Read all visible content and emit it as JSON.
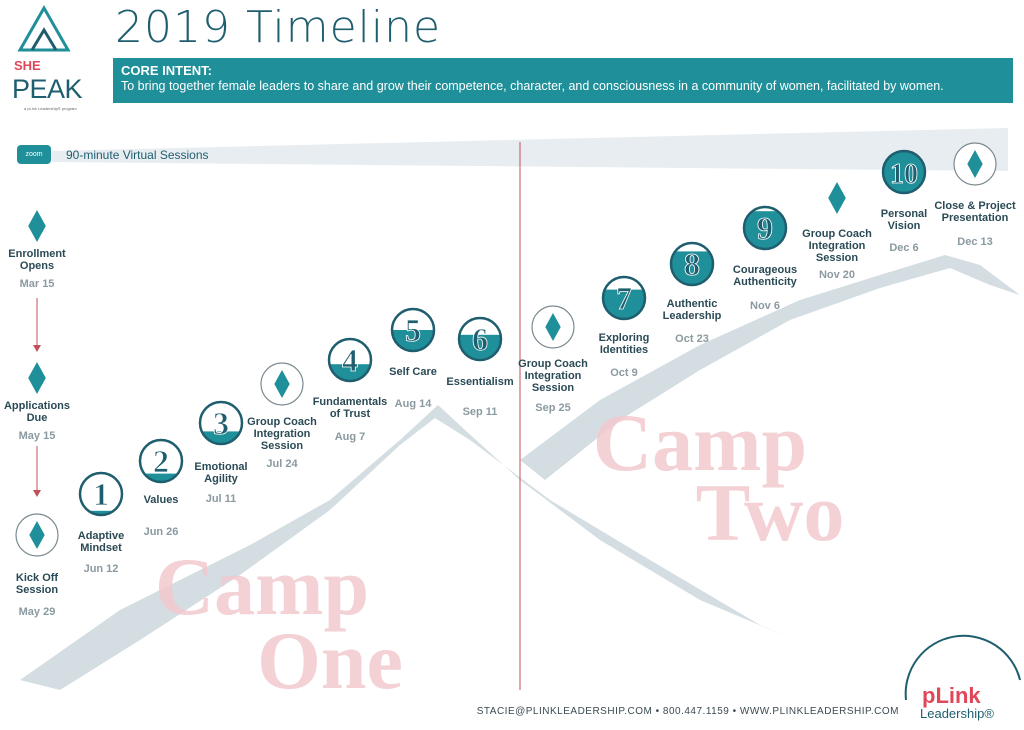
{
  "title": "2019 Timeline",
  "logo": {
    "she": "SHE",
    "peak": "PEAK",
    "tagline": "a pLink Leadership® program"
  },
  "banner": {
    "heading": "CORE INTENT:",
    "text": "To bring together female leaders to share and grow their competence, character, and consciousness in a community of women, facilitated by women."
  },
  "zoom": {
    "badge": "zoom",
    "label": "90-minute Virtual Sessions"
  },
  "camps": [
    "Camp One",
    "Camp Two"
  ],
  "milestones": [
    {
      "label": "Enrollment\nOpens",
      "date": "Mar 15",
      "kind": "diamond"
    },
    {
      "label": "Applications\nDue",
      "date": "May 15",
      "kind": "diamond"
    },
    {
      "label": "Kick Off\nSession",
      "date": "May 29",
      "kind": "diamond-circle"
    },
    {
      "num": "1",
      "label": "Adaptive\nMindset",
      "date": "Jun 12",
      "kind": "number",
      "fill": 0.1
    },
    {
      "num": "2",
      "label": "Values",
      "date": "Jun 26",
      "kind": "number",
      "fill": 0.2
    },
    {
      "num": "3",
      "label": "Emotional\nAgility",
      "date": "Jul 11",
      "kind": "number",
      "fill": 0.3
    },
    {
      "label": "Group Coach\nIntegration\nSession",
      "date": "Jul 24",
      "kind": "diamond-circle"
    },
    {
      "num": "4",
      "label": "Fundamentals\nof Trust",
      "date": "Aug 7",
      "kind": "number",
      "fill": 0.4
    },
    {
      "num": "5",
      "label": "Self Care",
      "date": "Aug 14",
      "kind": "number",
      "fill": 0.5
    },
    {
      "num": "6",
      "label": "Essentialism",
      "date": "Sep 11",
      "kind": "number",
      "fill": 0.6
    },
    {
      "label": "Group Coach\nIntegration\nSession",
      "date": "Sep 25",
      "kind": "diamond-circle"
    },
    {
      "num": "7",
      "label": "Exploring\nIdentities",
      "date": "Oct 9",
      "kind": "number",
      "fill": 0.7
    },
    {
      "num": "8",
      "label": "Authentic\nLeadership",
      "date": "Oct 23",
      "kind": "number",
      "fill": 0.8
    },
    {
      "num": "9",
      "label": "Courageous\nAuthenticity",
      "date": "Nov 6",
      "kind": "number",
      "fill": 0.9
    },
    {
      "label": "Group Coach\nIntegration\nSession",
      "date": "Nov 20",
      "kind": "diamond"
    },
    {
      "num": "10",
      "label": "Personal\nVision",
      "date": "Dec 6",
      "kind": "number",
      "fill": 1.0
    },
    {
      "label": "Close & Project\nPresentation",
      "date": "Dec 13",
      "kind": "diamond-circle"
    }
  ],
  "footer": "STACIE@PLINKLEADERSHIP.COM  •  800.447.1159  •  WWW.PLINKLEADERSHIP.COM",
  "brand": {
    "word": "pLink",
    "sub": "Leadership®"
  },
  "colors": {
    "teal": "#1f8f9a",
    "navy": "#1f5e6e",
    "pink": "#e0485a",
    "mountain": "#d3dde2",
    "camp": "#f2c9ce"
  }
}
